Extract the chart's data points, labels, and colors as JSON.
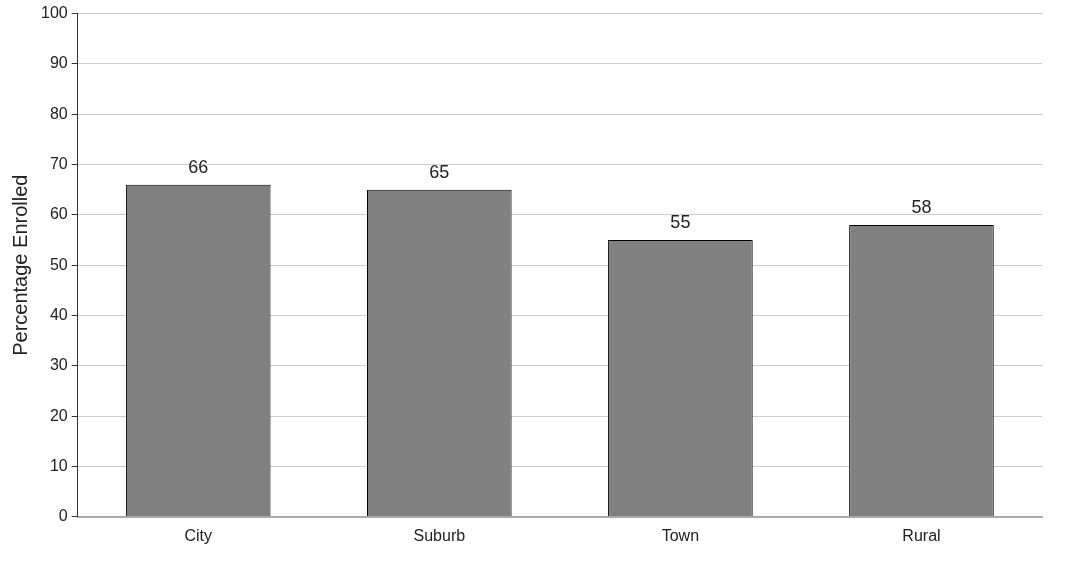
{
  "chart_data": {
    "type": "bar",
    "ylabel": "Percentage Enrolled",
    "categories": [
      "City",
      "Suburb",
      "Town",
      "Rural"
    ],
    "values": [
      66,
      65,
      55,
      58
    ],
    "color": "#808080",
    "ylim": [
      0,
      100
    ],
    "yticks": [
      0,
      10,
      20,
      30,
      40,
      50,
      60,
      70,
      80,
      90,
      100
    ],
    "grid": "y",
    "data_labels": true
  }
}
